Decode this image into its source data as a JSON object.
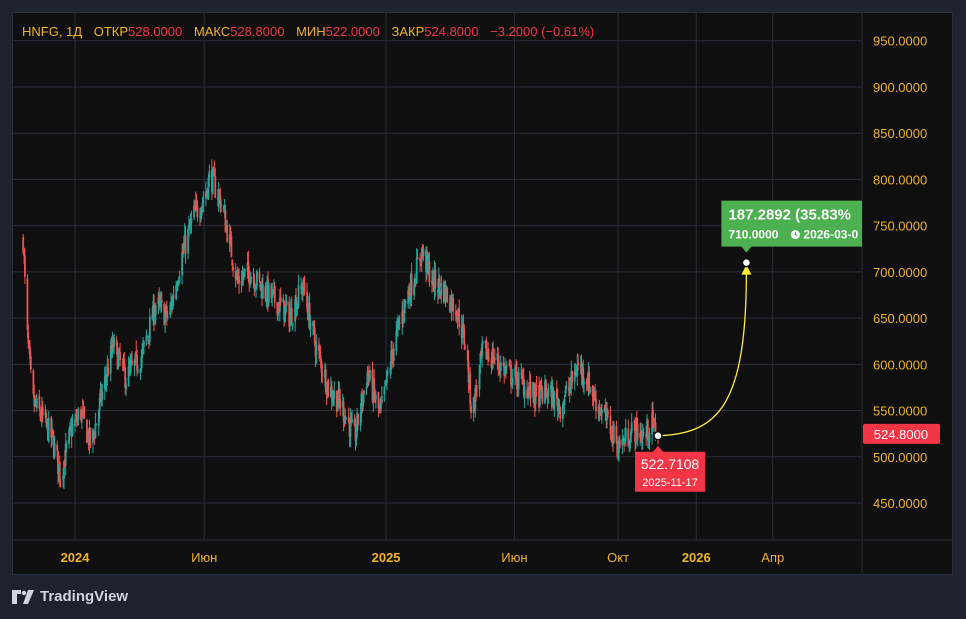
{
  "header": {
    "symbol": "HNFG, 1Д",
    "open_label": "ОТКР",
    "open_value": "528.0000",
    "high_label": "МАКС",
    "high_value": "528.8000",
    "low_label": "МИН",
    "low_value": "522.0000",
    "close_label": "ЗАКР",
    "close_value": "524.8000",
    "change": "−3.2000 (−0.61%)"
  },
  "brand": {
    "name": "TradingView"
  },
  "colors": {
    "background": "#0f0f0f",
    "grid": "#2a2e39",
    "up": "#26a69a",
    "down": "#ef5350",
    "axis_text": "#f0b322",
    "price_badge": "#f23645",
    "projection_line": "#ffeb3b",
    "projection_badge": "#4caf50"
  },
  "chart_data": {
    "type": "candlestick",
    "ylim": [
      410,
      980
    ],
    "y_ticks": [
      "950.0000",
      "900.0000",
      "850.0000",
      "800.0000",
      "750.0000",
      "700.0000",
      "650.0000",
      "600.0000",
      "550.0000",
      "500.0000",
      "450.0000"
    ],
    "x_ticks": [
      {
        "label": "2024",
        "date": "2024-01-01",
        "bold": true
      },
      {
        "label": "Июн",
        "date": "2024-06-01",
        "bold": false
      },
      {
        "label": "2025",
        "date": "2025-01-01",
        "bold": true
      },
      {
        "label": "Июн",
        "date": "2025-06-01",
        "bold": false
      },
      {
        "label": "Окт",
        "date": "2025-10-01",
        "bold": false
      },
      {
        "label": "2026",
        "date": "2026-01-01",
        "bold": true
      },
      {
        "label": "Апр",
        "date": "2026-04-01",
        "bold": false
      }
    ],
    "x_range": [
      "2023-10-20",
      "2026-07-15"
    ],
    "price_path": [
      [
        "2023-11-01",
        735
      ],
      [
        "2023-11-05",
        640
      ],
      [
        "2023-11-12",
        560
      ],
      [
        "2023-11-25",
        540
      ],
      [
        "2023-12-05",
        520
      ],
      [
        "2023-12-15",
        480
      ],
      [
        "2023-12-28",
        530
      ],
      [
        "2024-01-08",
        548
      ],
      [
        "2024-01-20",
        512
      ],
      [
        "2024-02-01",
        565
      ],
      [
        "2024-02-15",
        620
      ],
      [
        "2024-03-01",
        585
      ],
      [
        "2024-03-20",
        610
      ],
      [
        "2024-04-05",
        665
      ],
      [
        "2024-04-20",
        650
      ],
      [
        "2024-05-05",
        715
      ],
      [
        "2024-05-20",
        762
      ],
      [
        "2024-06-01",
        780
      ],
      [
        "2024-06-08",
        805
      ],
      [
        "2024-06-20",
        778
      ],
      [
        "2024-06-28",
        745
      ],
      [
        "2024-07-10",
        690
      ],
      [
        "2024-07-25",
        700
      ],
      [
        "2024-08-10",
        680
      ],
      [
        "2024-08-25",
        668
      ],
      [
        "2024-09-10",
        652
      ],
      [
        "2024-09-25",
        685
      ],
      [
        "2024-10-10",
        620
      ],
      [
        "2024-10-25",
        575
      ],
      [
        "2024-11-10",
        555
      ],
      [
        "2024-11-25",
        520
      ],
      [
        "2024-12-10",
        590
      ],
      [
        "2024-12-25",
        545
      ],
      [
        "2025-01-10",
        620
      ],
      [
        "2025-01-25",
        672
      ],
      [
        "2025-02-05",
        700
      ],
      [
        "2025-02-12",
        722
      ],
      [
        "2025-02-25",
        690
      ],
      [
        "2025-03-10",
        680
      ],
      [
        "2025-03-25",
        660
      ],
      [
        "2025-04-05",
        620
      ],
      [
        "2025-04-12",
        545
      ],
      [
        "2025-04-25",
        615
      ],
      [
        "2025-05-10",
        605
      ],
      [
        "2025-05-25",
        590
      ],
      [
        "2025-06-10",
        580
      ],
      [
        "2025-06-25",
        565
      ],
      [
        "2025-07-10",
        570
      ],
      [
        "2025-07-25",
        555
      ],
      [
        "2025-08-05",
        575
      ],
      [
        "2025-08-15",
        600
      ],
      [
        "2025-08-25",
        585
      ],
      [
        "2025-09-05",
        560
      ],
      [
        "2025-09-20",
        535
      ],
      [
        "2025-10-01",
        512
      ],
      [
        "2025-10-10",
        520
      ],
      [
        "2025-10-20",
        530
      ],
      [
        "2025-11-01",
        522
      ],
      [
        "2025-11-10",
        535
      ],
      [
        "2025-11-17",
        524.8
      ]
    ],
    "last_price": {
      "label": "524.8000",
      "value": 524.8
    },
    "projection": {
      "start": {
        "date": "2025-11-17",
        "value": 522.7108,
        "label": "522.7108",
        "date_label": "2025-11-17"
      },
      "end": {
        "date": "2026-03-01",
        "value": 710,
        "price_label": "710.0000",
        "date_label": "2026-03-0"
      },
      "change_label": "187.2892 (35.83%"
    }
  }
}
